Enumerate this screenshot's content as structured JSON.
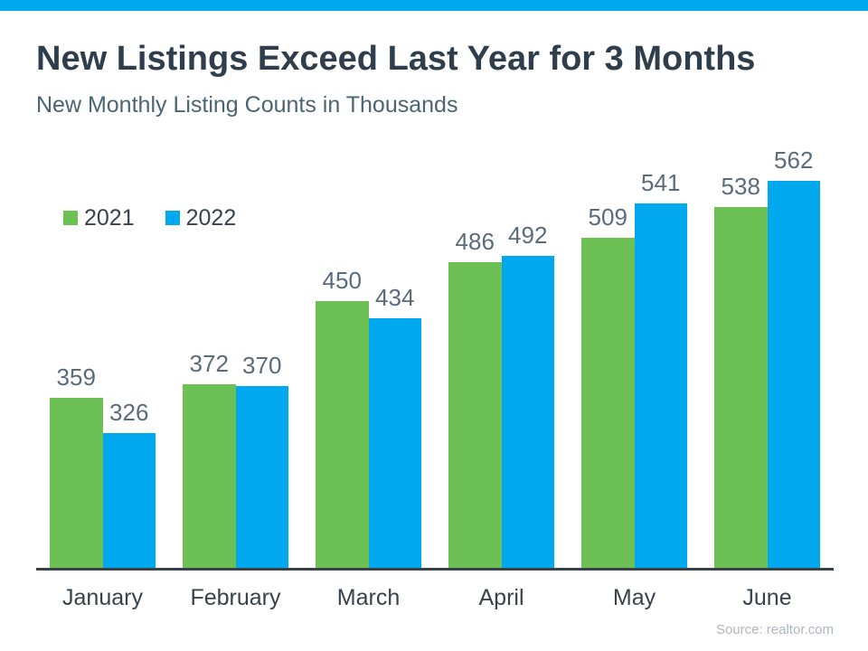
{
  "page": {
    "title": "New Listings Exceed Last Year for 3 Months",
    "subtitle": "New Monthly Listing Counts in Thousands",
    "source": "Source: realtor.com"
  },
  "colors": {
    "accent_strip": "#00A9EE",
    "series_2021": "#6DC154",
    "series_2022": "#00A9EE",
    "title_text": "#2E3E4C",
    "subtitle_text": "#4A6572",
    "value_label_text": "#5A6B7C",
    "month_label_text": "#37424C",
    "axis_line": "#37424C",
    "source_text": "#AEB6BD"
  },
  "legend": [
    {
      "label": "2021",
      "color": "#6DC154"
    },
    {
      "label": "2022",
      "color": "#00A9EE"
    }
  ],
  "chart_data": {
    "type": "bar",
    "title": "New Listings Exceed Last Year for 3 Months",
    "subtitle": "New Monthly Listing Counts in Thousands",
    "categories": [
      "January",
      "February",
      "March",
      "April",
      "May",
      "June"
    ],
    "series": [
      {
        "name": "2021",
        "color": "#6DC154",
        "values": [
          359,
          372,
          450,
          486,
          509,
          538
        ]
      },
      {
        "name": "2022",
        "color": "#00A9EE",
        "values": [
          326,
          370,
          434,
          492,
          541,
          562
        ]
      }
    ],
    "ylim": [
      200,
      600
    ],
    "grid": false,
    "data_labels": true,
    "legend_position": "top-left",
    "xlabel": "",
    "ylabel": "",
    "source": "Source: realtor.com"
  }
}
